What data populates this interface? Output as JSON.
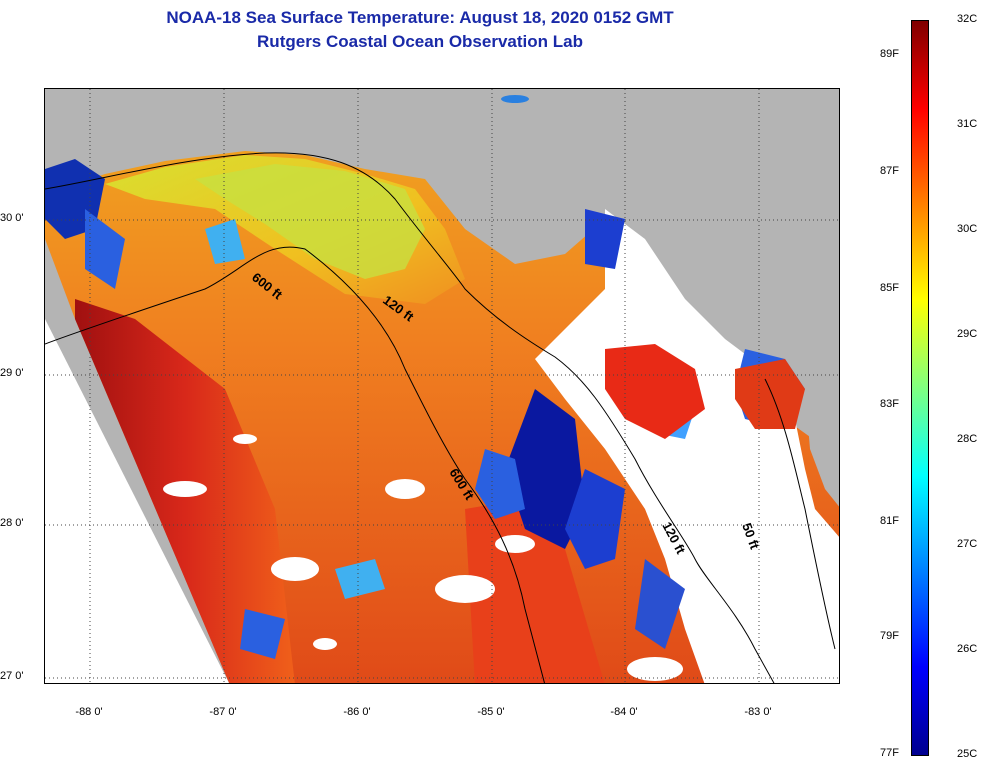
{
  "header": {
    "title": "NOAA-18 Sea Surface Temperature:  August 18, 2020 0152 GMT",
    "subtitle": "Rutgers Coastal Ocean Observation Lab"
  },
  "map": {
    "colors": {
      "land": "#b4b4b4",
      "cloud": "#ffffff",
      "contour": "#000000",
      "grid": "#444444"
    },
    "lat_ticks": [
      "30 0'",
      "29 0'",
      "28 0'",
      "27 0'"
    ],
    "lon_ticks": [
      "-88 0'",
      "-87 0'",
      "-86 0'",
      "-85 0'",
      "-84 0'",
      "-83 0'"
    ],
    "contour_labels": {
      "c600a": "600 ft",
      "c120a": "120 ft",
      "c600b": "600 ft",
      "c120b": "120 ft",
      "c50": "50 ft"
    }
  },
  "colorbar": {
    "fahrenheit": [
      "89F",
      "87F",
      "85F",
      "83F",
      "81F",
      "79F",
      "77F"
    ],
    "celsius": [
      "32C",
      "31C",
      "30C",
      "29C",
      "28C",
      "27C",
      "26C",
      "25C"
    ],
    "min_c": 25,
    "max_c": 32
  }
}
